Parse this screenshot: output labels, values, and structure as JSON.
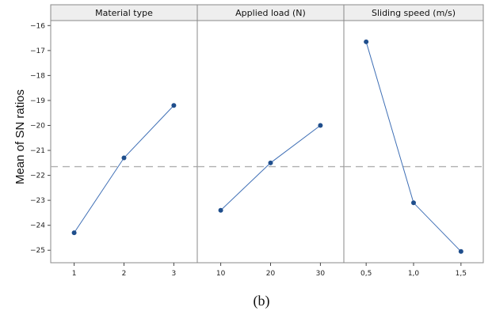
{
  "chart_data": {
    "type": "line",
    "ylabel": "Mean of SN ratios",
    "caption": "(b)",
    "ylim": [
      -25.5,
      -15.8
    ],
    "yticks": [
      -16,
      -17,
      -18,
      -19,
      -20,
      -21,
      -22,
      -23,
      -24,
      -25
    ],
    "reference_line": -21.65,
    "grid": false,
    "colors": {
      "line": "#3f6fb5",
      "marker": "#1f4e8c",
      "reference": "#b0b0b0",
      "header_bg": "#eeeeee",
      "frame": "#888888"
    },
    "panels": [
      {
        "title": "Material type",
        "categories": [
          "1",
          "2",
          "3"
        ],
        "values": [
          -24.3,
          -21.3,
          -19.2
        ]
      },
      {
        "title": "Applied load (N)",
        "categories": [
          "10",
          "20",
          "30"
        ],
        "values": [
          -23.4,
          -21.5,
          -20.0
        ]
      },
      {
        "title": "Sliding speed (m/s)",
        "categories": [
          "0,5",
          "1,0",
          "1,5"
        ],
        "values": [
          -16.65,
          -23.1,
          -25.05
        ]
      }
    ]
  }
}
